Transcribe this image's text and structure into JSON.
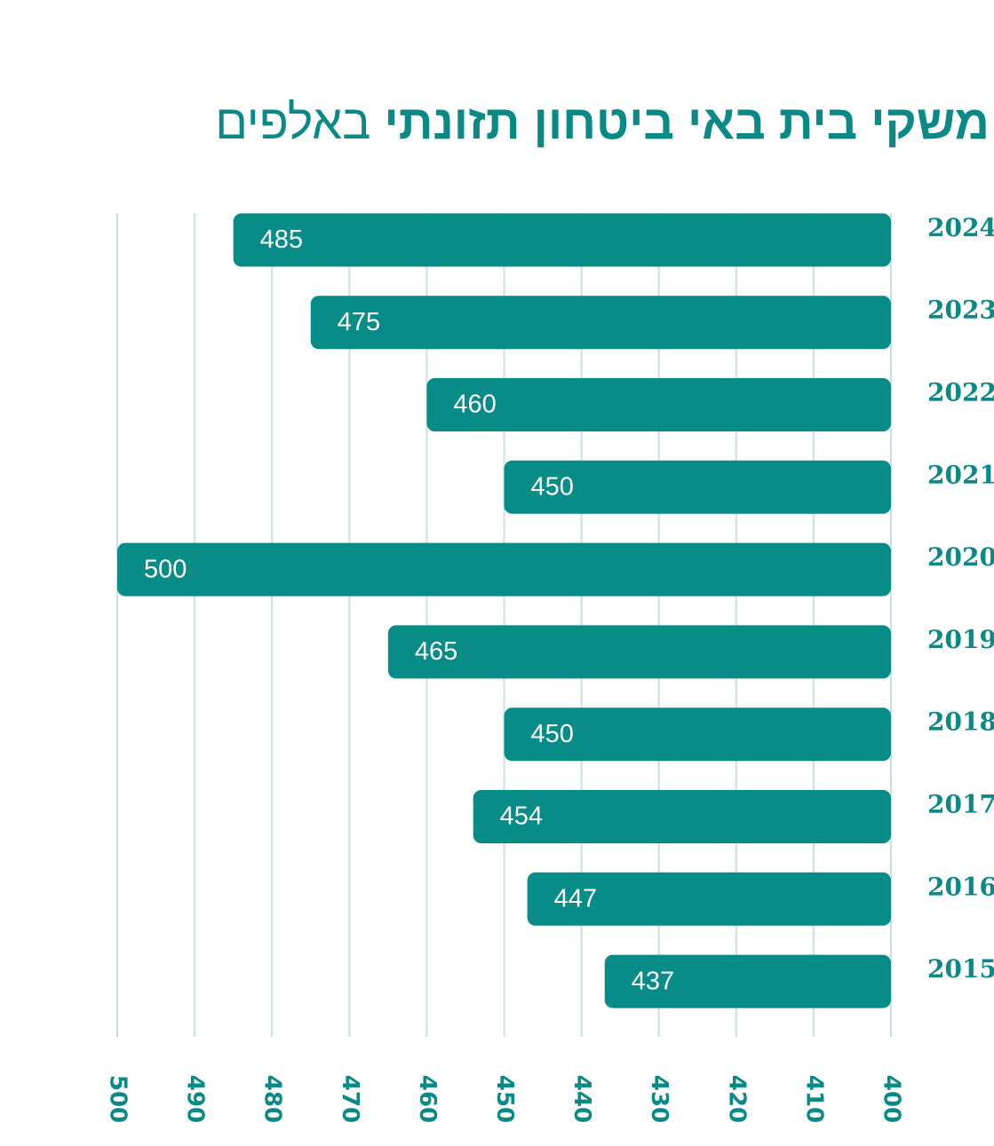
{
  "chart_data": {
    "type": "bar",
    "orientation": "horizontal",
    "title": "משקי בית באי ביטחון תזונתי",
    "title_unit": "באלפים",
    "categories": [
      "2024",
      "2023",
      "2022",
      "2021",
      "2020",
      "2019",
      "2018",
      "2017",
      "2016",
      "2015"
    ],
    "values": [
      485,
      475,
      460,
      450,
      500,
      465,
      450,
      454,
      447,
      437
    ],
    "color": "#088c88",
    "xlim": [
      400,
      500
    ],
    "xaxis_direction": "right-to-left",
    "xticks": [
      400,
      410,
      420,
      430,
      440,
      450,
      460,
      470,
      480,
      490,
      500
    ],
    "grid": true,
    "grid_color": "#c8e3dd"
  }
}
